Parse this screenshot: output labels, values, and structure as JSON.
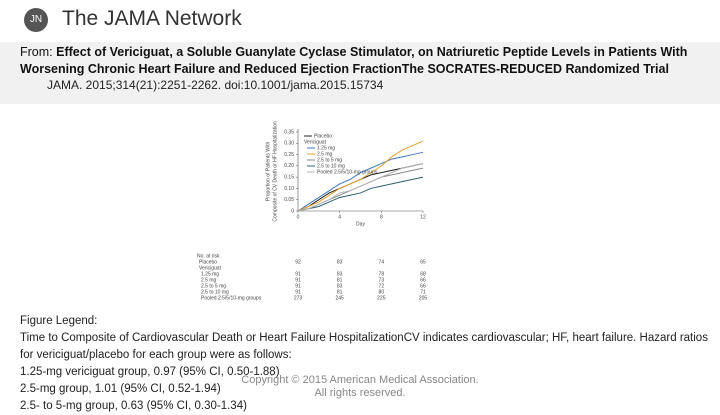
{
  "header": {
    "logo": "JN",
    "brand": "The JAMA Network"
  },
  "citation": {
    "prefix": "From:",
    "title": "Effect of Vericiguat, a Soluble Guanylate Cyclase Stimulator, on Natriuretic Peptide Levels in Patients With Worsening Chronic Heart Failure and Reduced Ejection FractionThe SOCRATES-REDUCED Randomized Trial",
    "source": "JAMA. 2015;314(21):2251-2262. doi:10.1001/jama.2015.15734"
  },
  "chart_data": {
    "type": "line",
    "xlabel": "Day",
    "ylabel": [
      "Proportion of Patients With",
      "Composite of CV Death or HF Hospitalization"
    ],
    "x": [
      0,
      1,
      2,
      3,
      4,
      5,
      6,
      7,
      8,
      9,
      10,
      11,
      12
    ],
    "xlim": [
      0,
      12
    ],
    "xticks": [
      0,
      4,
      8,
      12
    ],
    "ylim": [
      0,
      0.35
    ],
    "yticks": [
      0,
      0.05,
      {
        "value": 0.1,
        "label": "0.10"
      },
      0.15,
      {
        "value": 0.2,
        "label": "0.20"
      },
      0.25,
      {
        "value": 0.3,
        "label": "0.30"
      },
      0.35
    ],
    "legend_heading": "Vericiguat",
    "series": [
      {
        "name": "Placebo",
        "color": "#222222",
        "values": [
          0,
          0.02,
          0.05,
          0.08,
          0.1,
          0.12,
          0.14,
          0.16,
          0.17,
          0.18,
          0.19,
          0.2,
          0.21
        ]
      },
      {
        "name": "1.25 mg",
        "color": "#3f78c0",
        "values": [
          0,
          0.03,
          0.06,
          0.09,
          0.12,
          0.14,
          0.17,
          0.19,
          0.21,
          0.23,
          0.24,
          0.25,
          0.26
        ]
      },
      {
        "name": "2.5 mg",
        "color": "#e8a030",
        "values": [
          0,
          0.02,
          0.04,
          0.07,
          0.1,
          0.12,
          0.14,
          0.17,
          0.2,
          0.24,
          0.27,
          0.29,
          0.31
        ]
      },
      {
        "name": "2.5 to 5 mg",
        "color": "#8a8a8a",
        "values": [
          0,
          0.01,
          0.03,
          0.05,
          0.07,
          0.09,
          0.11,
          0.13,
          0.15,
          0.16,
          0.17,
          0.18,
          0.19
        ]
      },
      {
        "name": "2.5 to 10 mg",
        "color": "#2d6070",
        "values": [
          0,
          0.01,
          0.02,
          0.04,
          0.06,
          0.07,
          0.08,
          0.1,
          0.11,
          0.12,
          0.13,
          0.14,
          0.15
        ]
      },
      {
        "name": "Pooled 2.5/5/10-mg groups",
        "color": "#b5b5b5",
        "values": [
          0,
          0.01,
          0.03,
          0.05,
          0.08,
          0.09,
          0.11,
          0.13,
          0.15,
          0.17,
          0.19,
          0.2,
          0.21
        ]
      }
    ],
    "at_risk": {
      "title": "No. at risk",
      "subheading": "Vericiguat",
      "rows": [
        {
          "label": "Placebo",
          "values": [
            92,
            83,
            74,
            65
          ]
        },
        {
          "label": "1.25 mg",
          "values": [
            91,
            83,
            78,
            68
          ]
        },
        {
          "label": "2.5 mg",
          "values": [
            91,
            81,
            73,
            66
          ]
        },
        {
          "label": "2.5 to 5 mg",
          "values": [
            91,
            83,
            72,
            66
          ]
        },
        {
          "label": "2.5 to 10 mg",
          "values": [
            91,
            81,
            80,
            71
          ]
        },
        {
          "label": "Pooled 2.5/5/10-mg groups",
          "values": [
            273,
            245,
            225,
            205
          ]
        }
      ]
    }
  },
  "legend": {
    "heading": "Figure Legend:",
    "lines": [
      "Time to Composite of Cardiovascular Death or Heart Failure HospitalizationCV indicates cardiovascular; HF, heart failure. Hazard ratios for vericiguat/placebo for each group were as follows:",
      "1.25-mg vericiguat group, 0.97 (95% CI, 0.50-1.88)",
      "2.5-mg group, 1.01 (95% CI, 0.52-1.94)",
      "2.5- to 5-mg group, 0.63 (95% CI, 0.30-1.34)"
    ]
  },
  "copyright": [
    "Copyright © 2015 American Medical Association.",
    "All rights reserved."
  ]
}
